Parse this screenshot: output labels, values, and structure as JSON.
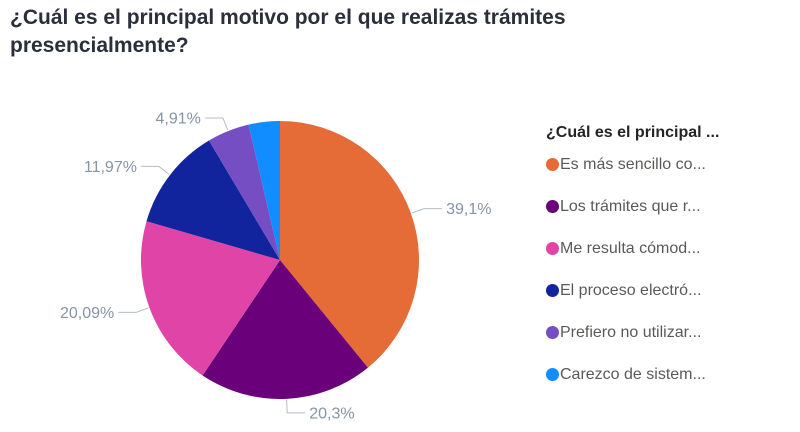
{
  "title": {
    "text": "¿Cuál es el principal motivo por el que realizas trámites presencialmente?",
    "line1": "¿Cuál es el principal motivo por el que realizas trámites",
    "line2": "presencialmente?"
  },
  "style": {
    "title_color": "#2A2F3A",
    "label_color": "#8694A3",
    "leader_color": "#B6BDC5",
    "legend_title_color": "#252423",
    "legend_text_color": "#5C5A58",
    "background": "#FFFFFF"
  },
  "chart_data": {
    "type": "pie",
    "title": "¿Cuál es el principal motivo por el que realizas trámites presencialmente?",
    "legend_title": "¿Cuál es el principal ...",
    "legend_position": "right",
    "start_angle_deg": 0,
    "direction": "clockwise",
    "data_labels": "percent, outside with leader lines",
    "slices": [
      {
        "legend_label": "Es más sencillo co...",
        "value": 39.1,
        "label": "39,1%",
        "color": "#E66C37",
        "labeled": true
      },
      {
        "legend_label": "Los trámites que r...",
        "value": 20.3,
        "label": "20,3%",
        "color": "#6B007B",
        "labeled": true
      },
      {
        "legend_label": "Me resulta cómod...",
        "value": 20.09,
        "label": "20,09%",
        "color": "#E044A7",
        "labeled": true
      },
      {
        "legend_label": "El proceso electró...",
        "value": 11.97,
        "label": "11,97%",
        "color": "#12239E",
        "labeled": true
      },
      {
        "legend_label": "Prefiero no utilizar...",
        "value": 4.91,
        "label": "4,91%",
        "color": "#744EC2",
        "labeled": true
      },
      {
        "legend_label": "Carezco de sistem...",
        "value": 3.63,
        "label": "",
        "color": "#118DFF",
        "labeled": false
      }
    ]
  }
}
